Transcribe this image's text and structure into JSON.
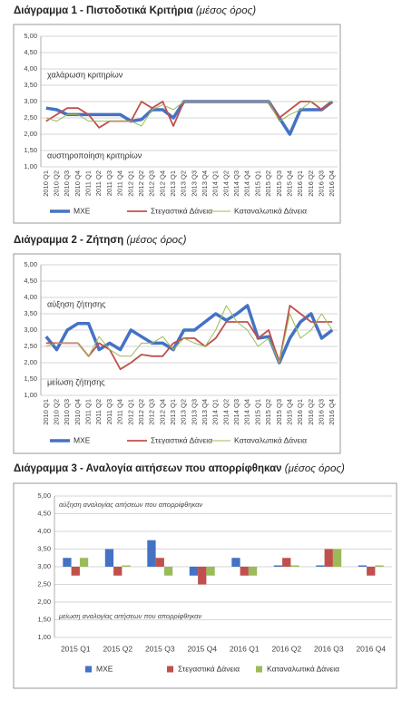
{
  "chart_data": [
    {
      "type": "line",
      "title": "Διάγραμμα 1 - Πιστοδοτικά Κριτήρια",
      "subtitle": "(μέσος όρος)",
      "categories": [
        "2010 Q1",
        "2010 Q2",
        "2010 Q3",
        "2010 Q4",
        "2011 Q1",
        "2011 Q2",
        "2011 Q3",
        "2011 Q4",
        "2012 Q1",
        "2012 Q2",
        "2012 Q3",
        "2012 Q4",
        "2013 Q1",
        "2013 Q2",
        "2013 Q3",
        "2013 Q4",
        "2014 Q1",
        "2014 Q2",
        "2014 Q3",
        "2014 Q4",
        "2015 Q1",
        "2015 Q2",
        "2015 Q3",
        "2015 Q4",
        "2016 Q1",
        "2016 Q2",
        "2016 Q3",
        "2016 Q4"
      ],
      "series": [
        {
          "name": "ΜΧΕ",
          "color": "#4472c4",
          "values": [
            2.8,
            2.75,
            2.6,
            2.6,
            2.6,
            2.6,
            2.6,
            2.6,
            2.4,
            2.45,
            2.75,
            2.75,
            2.5,
            3.0,
            3.0,
            3.0,
            3.0,
            3.0,
            3.0,
            3.0,
            3.0,
            3.0,
            2.5,
            2.0,
            2.75,
            2.75,
            2.75,
            3.0
          ]
        },
        {
          "name": "Στεγαστικά Δάνεια",
          "color": "#c0504d",
          "values": [
            2.4,
            2.6,
            2.8,
            2.8,
            2.6,
            2.2,
            2.4,
            2.4,
            2.4,
            3.0,
            2.8,
            3.0,
            2.25,
            3.0,
            3.0,
            3.0,
            3.0,
            3.0,
            3.0,
            3.0,
            3.0,
            3.0,
            2.5,
            2.75,
            3.0,
            3.0,
            2.75,
            3.0
          ]
        },
        {
          "name": "Καταναλωτικά Δάνεια",
          "color": "#9bbb59",
          "values": [
            2.5,
            2.4,
            2.6,
            2.6,
            2.4,
            2.4,
            2.4,
            2.4,
            2.4,
            2.25,
            2.75,
            2.9,
            2.75,
            3.0,
            3.0,
            3.0,
            3.0,
            3.0,
            3.0,
            3.0,
            3.0,
            3.0,
            2.4,
            2.6,
            2.75,
            3.0,
            3.0,
            3.0
          ]
        }
      ],
      "annotations": [
        "χαλάρωση κριτηρίων",
        "αυστηροποίηση κριτηρίων"
      ],
      "ylim": [
        1,
        5
      ],
      "yticks": [
        {
          "value": 1,
          "label": "1,00"
        },
        {
          "value": 1.5,
          "label": "1,50"
        },
        {
          "value": 2,
          "label": "2,00"
        },
        {
          "value": 2.5,
          "label": "2,50"
        },
        {
          "value": 3,
          "label": "3,00"
        },
        {
          "value": 3.5,
          "label": "3,50"
        },
        {
          "value": 4,
          "label": "4,00"
        },
        {
          "value": 4.5,
          "label": "4,50"
        },
        {
          "value": 5,
          "label": "5,00"
        }
      ],
      "grid": true,
      "legend": "bottom"
    },
    {
      "type": "line",
      "title": "Διάγραμμα 2 - Ζήτηση",
      "subtitle": "(μέσος όρος)",
      "categories": [
        "2010 Q1",
        "2010 Q2",
        "2010 Q3",
        "2010 Q4",
        "2011 Q1",
        "2011 Q2",
        "2011 Q3",
        "2011 Q4",
        "2012 Q1",
        "2012 Q2",
        "2012 Q3",
        "2012 Q4",
        "2013 Q1",
        "2013 Q2",
        "2013 Q3",
        "2013 Q4",
        "2014 Q1",
        "2014 Q2",
        "2014 Q3",
        "2014 Q4",
        "2015 Q1",
        "2015 Q2",
        "2015 Q3",
        "2015 Q4",
        "2016 Q1",
        "2016 Q2",
        "2016 Q3",
        "2016 Q4"
      ],
      "series": [
        {
          "name": "ΜΧΕ",
          "color": "#4472c4",
          "values": [
            2.8,
            2.4,
            3.0,
            3.2,
            3.2,
            2.4,
            2.6,
            2.4,
            3.0,
            2.8,
            2.6,
            2.6,
            2.4,
            3.0,
            3.0,
            3.25,
            3.5,
            3.3,
            3.5,
            3.75,
            2.75,
            2.8,
            2.0,
            2.75,
            3.25,
            3.5,
            2.75,
            3.0
          ]
        },
        {
          "name": "Στεγαστικά Δάνεια",
          "color": "#c0504d",
          "values": [
            2.6,
            2.6,
            2.6,
            2.6,
            2.2,
            2.6,
            2.4,
            1.8,
            2.0,
            2.25,
            2.2,
            2.2,
            2.6,
            2.75,
            2.75,
            2.5,
            2.75,
            3.25,
            3.25,
            3.25,
            2.75,
            3.0,
            2.0,
            3.75,
            3.5,
            3.25,
            3.25,
            3.25
          ]
        },
        {
          "name": "Καταναλωτικά Δάνεια",
          "color": "#9bbb59",
          "values": [
            2.5,
            2.6,
            2.6,
            2.6,
            2.2,
            2.8,
            2.4,
            2.2,
            2.2,
            2.6,
            2.6,
            2.8,
            2.4,
            2.75,
            2.6,
            2.5,
            3.0,
            3.75,
            3.25,
            3.0,
            2.5,
            2.75,
            2.0,
            3.5,
            2.75,
            3.0,
            3.5,
            3.0
          ]
        }
      ],
      "annotations": [
        "αύξηση ζήτησης",
        "μείωση ζήτησης"
      ],
      "ylim": [
        1,
        5
      ],
      "yticks": [
        {
          "value": 1,
          "label": "1,00"
        },
        {
          "value": 1.5,
          "label": "1,50"
        },
        {
          "value": 2,
          "label": "2,00"
        },
        {
          "value": 2.5,
          "label": "2,50"
        },
        {
          "value": 3,
          "label": "3,00"
        },
        {
          "value": 3.5,
          "label": "3,50"
        },
        {
          "value": 4,
          "label": "4,00"
        },
        {
          "value": 4.5,
          "label": "4,50"
        },
        {
          "value": 5,
          "label": "5,00"
        }
      ],
      "grid": true,
      "legend": "bottom"
    },
    {
      "type": "bar",
      "title": "Διάγραμμα 3 - Αναλογία αιτήσεων που απορρίφθηκαν",
      "subtitle": "(μέσος όρος)",
      "categories": [
        "2015 Q1",
        "2015 Q2",
        "2015 Q3",
        "2015 Q4",
        "2016 Q1",
        "2016 Q2",
        "2016 Q3",
        "2016 Q4"
      ],
      "series": [
        {
          "name": "ΜΧΕ",
          "color": "#4472c4",
          "values": [
            3.25,
            3.5,
            3.75,
            2.75,
            3.25,
            3.0,
            3.0,
            3.0
          ]
        },
        {
          "name": "Στεγαστικά Δάνεια",
          "color": "#c0504d",
          "values": [
            2.75,
            2.75,
            3.25,
            2.5,
            2.75,
            3.25,
            3.5,
            2.75
          ]
        },
        {
          "name": "Καταναλωτικά Δάνεια",
          "color": "#9bbb59",
          "values": [
            3.25,
            3.0,
            2.75,
            2.75,
            2.75,
            3.0,
            3.5,
            3.0
          ]
        }
      ],
      "annotations": [
        "αύξηση αναλογίας αιτήσεων που απορρίφθηκαν",
        "μείωση αναλογίας αιτήσεων που απορρίφθηκαν"
      ],
      "bar_base": 3,
      "ylim": [
        1,
        5
      ],
      "yticks": [
        {
          "value": 1,
          "label": "1,00"
        },
        {
          "value": 1.5,
          "label": "1,50"
        },
        {
          "value": 2,
          "label": "2,00"
        },
        {
          "value": 2.5,
          "label": "2,50"
        },
        {
          "value": 3,
          "label": "3,00"
        },
        {
          "value": 3.5,
          "label": "3,50"
        },
        {
          "value": 4,
          "label": "4,00"
        },
        {
          "value": 4.5,
          "label": "4,50"
        },
        {
          "value": 5,
          "label": "5,00"
        }
      ],
      "grid": true,
      "legend": "bottom"
    }
  ]
}
